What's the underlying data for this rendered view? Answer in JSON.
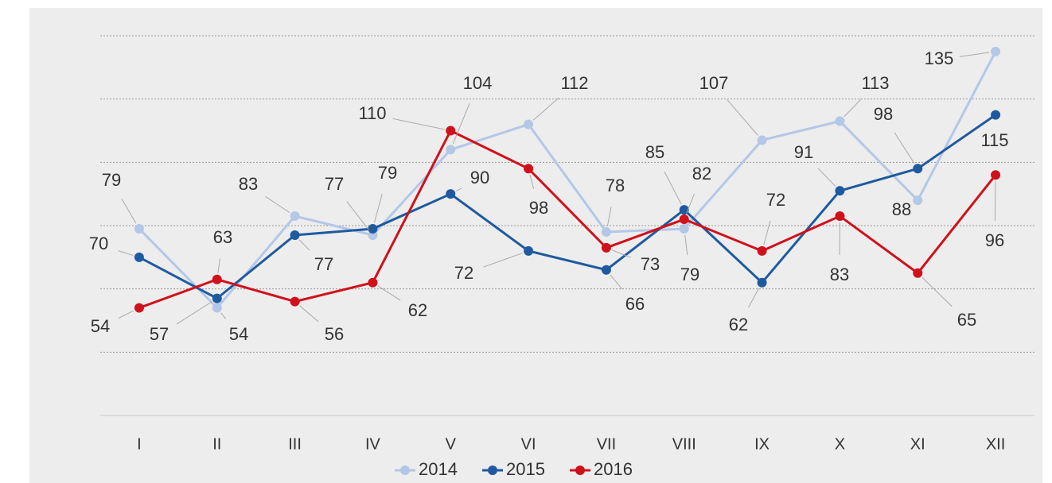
{
  "chart_data": {
    "type": "line",
    "categories": [
      "I",
      "II",
      "III",
      "IV",
      "V",
      "VI",
      "VII",
      "VIII",
      "IX",
      "X",
      "XI",
      "XII"
    ],
    "series": [
      {
        "name": "2014",
        "color": "#b4c7e7",
        "values": [
          79,
          54,
          83,
          77,
          104,
          112,
          78,
          79,
          107,
          113,
          88,
          135
        ]
      },
      {
        "name": "2015",
        "color": "#1f5aa0",
        "values": [
          70,
          57,
          77,
          79,
          90,
          72,
          66,
          85,
          62,
          91,
          98,
          115
        ]
      },
      {
        "name": "2016",
        "color": "#d0111b",
        "values": [
          54,
          63,
          56,
          62,
          110,
          98,
          73,
          82,
          72,
          83,
          65,
          96
        ]
      }
    ],
    "ylim": [
      20,
      140
    ],
    "yticks": [
      20,
      40,
      60,
      80,
      100,
      120,
      140
    ],
    "grid": true,
    "legend": "bottom"
  }
}
